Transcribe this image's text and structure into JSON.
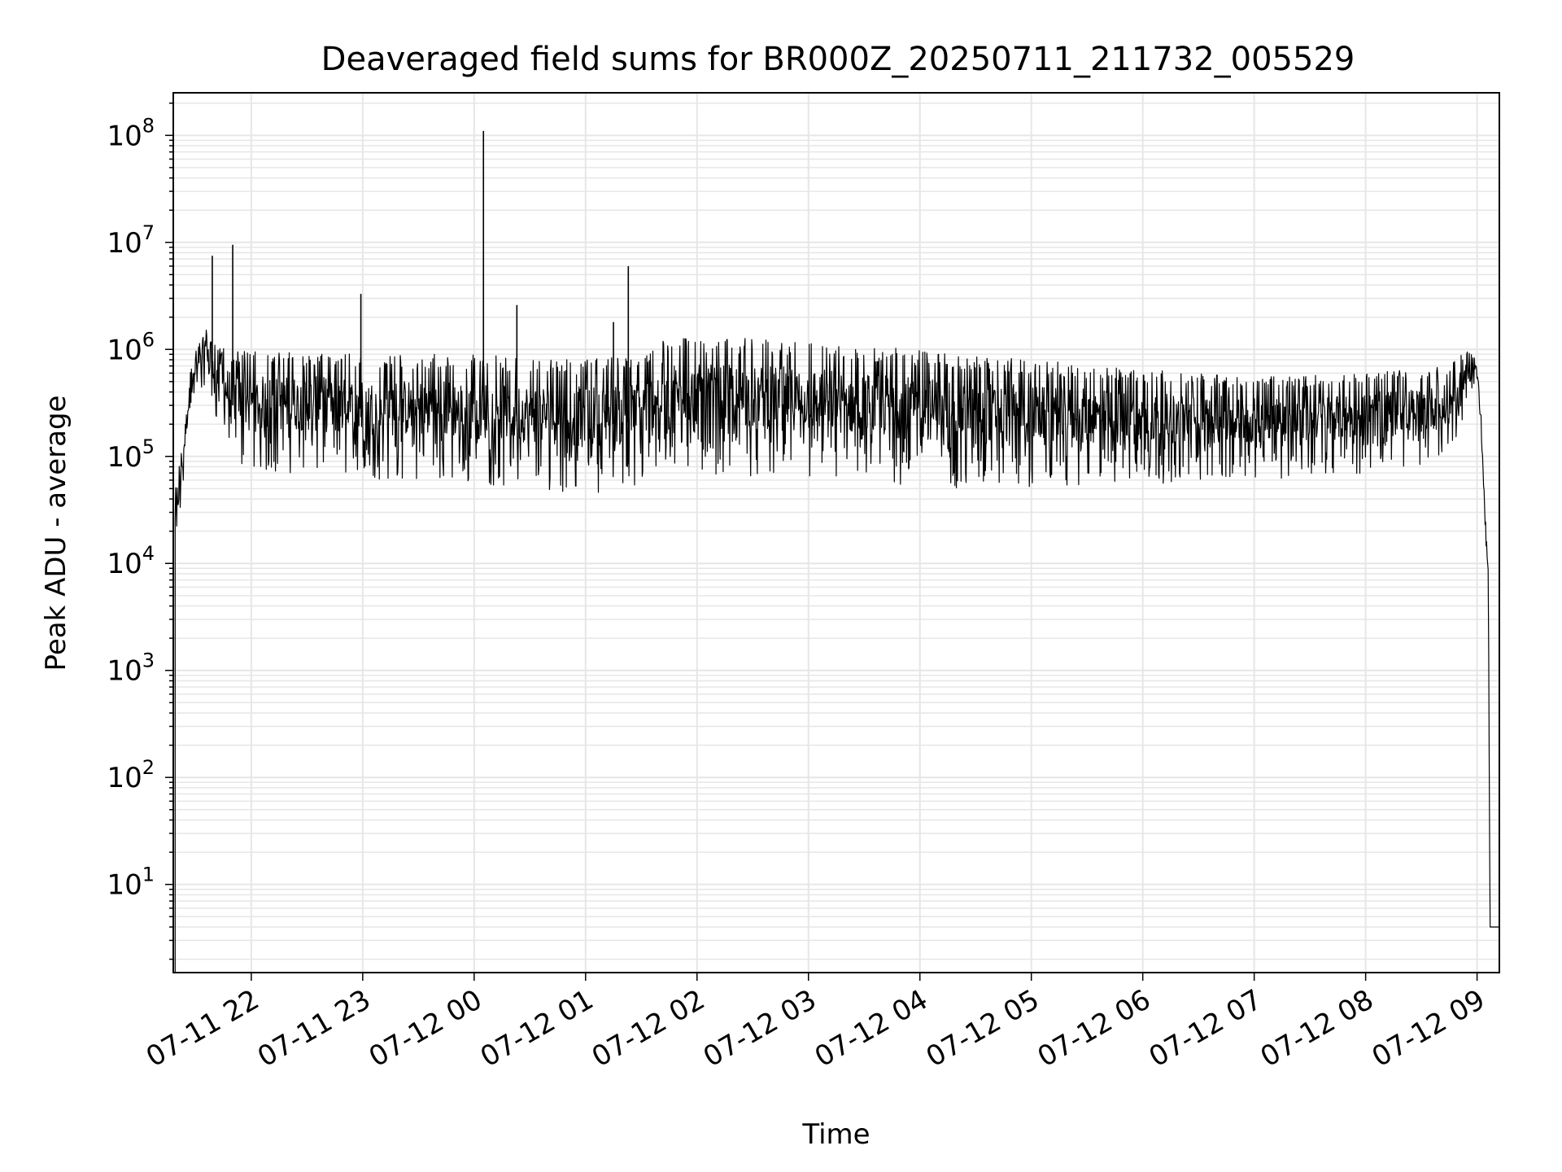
{
  "chart_data": {
    "type": "line",
    "title": "Deaveraged field sums for BR000Z_20250711_211732_005529",
    "xlabel": "Time",
    "ylabel": "Peak ADU - average",
    "yscale": "log",
    "ylim": [
      1.5,
      250000000
    ],
    "xlim": [
      "07-11 21:18",
      "07-12 09:12"
    ],
    "grid": true,
    "line_color": "#000000",
    "grid_color": "#e6e6e6",
    "x_ticks": [
      "07-11 22",
      "07-11 23",
      "07-12 00",
      "07-12 01",
      "07-12 02",
      "07-12 03",
      "07-12 04",
      "07-12 05",
      "07-12 06",
      "07-12 07",
      "07-12 08",
      "07-12 09"
    ],
    "y_ticks": [
      {
        "value": 10,
        "base": "10",
        "exp": "1"
      },
      {
        "value": 100,
        "base": "10",
        "exp": "2"
      },
      {
        "value": 1000,
        "base": "10",
        "exp": "3"
      },
      {
        "value": 10000,
        "base": "10",
        "exp": "4"
      },
      {
        "value": 100000,
        "base": "10",
        "exp": "5"
      },
      {
        "value": 1000000,
        "base": "10",
        "exp": "6"
      },
      {
        "value": 10000000,
        "base": "10",
        "exp": "7"
      },
      {
        "value": 100000000,
        "base": "10",
        "exp": "8"
      }
    ],
    "series": [
      {
        "envelope": [
          {
            "t": "07-11 21:19",
            "hi": 75000,
            "lo": 9000
          },
          {
            "t": "07-11 21:22",
            "hi": 100000,
            "lo": 30000
          },
          {
            "t": "07-11 21:26",
            "hi": 500000,
            "lo": 150000
          },
          {
            "t": "07-11 21:30",
            "hi": 1000000,
            "lo": 400000
          },
          {
            "t": "07-11 21:35",
            "hi": 1600000,
            "lo": 400000
          },
          {
            "t": "07-11 21:40",
            "hi": 1100000,
            "lo": 250000
          },
          {
            "t": "07-11 21:50",
            "hi": 1000000,
            "lo": 90000
          },
          {
            "t": "07-11 22:00",
            "hi": 950000,
            "lo": 70000
          },
          {
            "t": "07-11 22:30",
            "hi": 950000,
            "lo": 70000
          },
          {
            "t": "07-11 23:00",
            "hi": 900000,
            "lo": 60000
          },
          {
            "t": "07-11 23:30",
            "hi": 900000,
            "lo": 60000
          },
          {
            "t": "07-12 00:00",
            "hi": 900000,
            "lo": 55000
          },
          {
            "t": "07-12 00:30",
            "hi": 850000,
            "lo": 50000
          },
          {
            "t": "07-12 01:00",
            "hi": 800000,
            "lo": 45000
          },
          {
            "t": "07-12 01:30",
            "hi": 900000,
            "lo": 50000
          },
          {
            "t": "07-12 01:40",
            "hi": 1300000,
            "lo": 80000
          },
          {
            "t": "07-12 02:00",
            "hi": 1300000,
            "lo": 70000
          },
          {
            "t": "07-12 03:00",
            "hi": 1250000,
            "lo": 60000
          },
          {
            "t": "07-12 04:00",
            "hi": 1000000,
            "lo": 50000
          },
          {
            "t": "07-12 05:00",
            "hi": 800000,
            "lo": 50000
          },
          {
            "t": "07-12 06:00",
            "hi": 650000,
            "lo": 55000
          },
          {
            "t": "07-12 07:00",
            "hi": 550000,
            "lo": 60000
          },
          {
            "t": "07-12 08:00",
            "hi": 600000,
            "lo": 70000
          },
          {
            "t": "07-12 08:45",
            "hi": 700000,
            "lo": 90000
          },
          {
            "t": "07-12 08:55",
            "hi": 1000000,
            "lo": 300000
          },
          {
            "t": "07-12 09:00",
            "hi": 800000,
            "lo": 500000
          },
          {
            "t": "07-12 09:02",
            "hi": 300000,
            "lo": 200000
          },
          {
            "t": "07-12 09:04",
            "hi": 40000,
            "lo": 30000
          },
          {
            "t": "07-12 09:06",
            "hi": 10000,
            "lo": 5000
          },
          {
            "t": "07-12 09:07",
            "hi": 4,
            "lo": 4
          },
          {
            "t": "07-12 09:12",
            "hi": 4,
            "lo": 4
          }
        ],
        "spikes": [
          {
            "t": "07-11 21:39",
            "value": 7500000
          },
          {
            "t": "07-11 21:50",
            "value": 9500000
          },
          {
            "t": "07-11 22:59",
            "value": 3300000
          },
          {
            "t": "07-12 00:05",
            "value": 110000000
          },
          {
            "t": "07-12 00:23",
            "value": 2600000
          },
          {
            "t": "07-12 01:15",
            "value": 1800000
          },
          {
            "t": "07-12 01:23",
            "value": 6000000
          }
        ]
      }
    ]
  }
}
